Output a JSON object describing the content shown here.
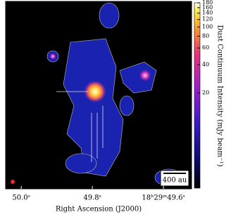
{
  "chart_data": {
    "type": "image",
    "xlabel": "Right Ascension (J2000)",
    "xlim": [
      50.044,
      49.521
    ],
    "xticks": [
      {
        "value": 50.0,
        "label": "50.0ˢ"
      },
      {
        "value": 49.8,
        "label": "49.8ˢ"
      },
      {
        "value": 49.6,
        "label": "18ʰ29ᵐ49.6ˢ"
      }
    ],
    "colorbar": {
      "label": "Dust Continuum Intensity (mJy beam⁻¹)",
      "scale": "asinh",
      "clim": [
        0,
        180
      ],
      "ticks": [
        20,
        40,
        60,
        80,
        100,
        120,
        140,
        160,
        180
      ]
    },
    "scale_bar": "400 au"
  }
}
